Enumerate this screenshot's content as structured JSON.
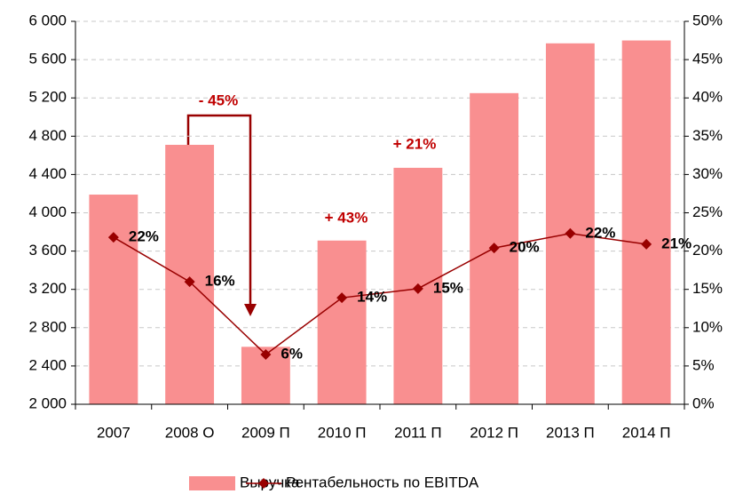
{
  "chart_data": {
    "type": "bar",
    "categories": [
      "2007",
      "2008 О",
      "2009 П",
      "2010 П",
      "2011 П",
      "2012 П",
      "2013 П",
      "2014 П"
    ],
    "series": [
      {
        "name": "Выручка",
        "type": "bar",
        "color": "#f98f90",
        "values": [
          4190,
          4710,
          2600,
          3710,
          4470,
          5250,
          5770,
          5800
        ]
      },
      {
        "name": "Рентабельность по EBITDA",
        "type": "line",
        "axis": "y2",
        "color": "#990000",
        "values": [
          21.8,
          16,
          6.5,
          13.9,
          15.1,
          20.4,
          22.3,
          20.9
        ],
        "value_labels": [
          "22%",
          "16%",
          "6%",
          "14%",
          "15%",
          "20%",
          "22%",
          "21%"
        ]
      }
    ],
    "ylim": [
      2000,
      6000
    ],
    "yticks": [
      {
        "value": 2000,
        "label": "2 000"
      },
      {
        "value": 2400,
        "label": "2 400"
      },
      {
        "value": 2800,
        "label": "2 800"
      },
      {
        "value": 3200,
        "label": "3 200"
      },
      {
        "value": 3600,
        "label": "3 600"
      },
      {
        "value": 4000,
        "label": "4 000"
      },
      {
        "value": 4400,
        "label": "4 400"
      },
      {
        "value": 4800,
        "label": "4 800"
      },
      {
        "value": 5200,
        "label": "5 200"
      },
      {
        "value": 5600,
        "label": "5 600"
      },
      {
        "value": 6000,
        "label": "6 000"
      }
    ],
    "y2lim": [
      0,
      50
    ],
    "y2ticks": [
      {
        "value": 0,
        "label": "0%"
      },
      {
        "value": 5,
        "label": "5%"
      },
      {
        "value": 10,
        "label": "10%"
      },
      {
        "value": 15,
        "label": "15%"
      },
      {
        "value": 20,
        "label": "20%"
      },
      {
        "value": 25,
        "label": "25%"
      },
      {
        "value": 30,
        "label": "30%"
      },
      {
        "value": 35,
        "label": "35%"
      },
      {
        "value": 40,
        "label": "40%"
      },
      {
        "value": 45,
        "label": "45%"
      },
      {
        "value": 50,
        "label": "50%"
      }
    ],
    "grid": true,
    "legend": "bottom",
    "annotations": [
      "- 45%",
      "+ 43%",
      "+ 21%"
    ]
  }
}
